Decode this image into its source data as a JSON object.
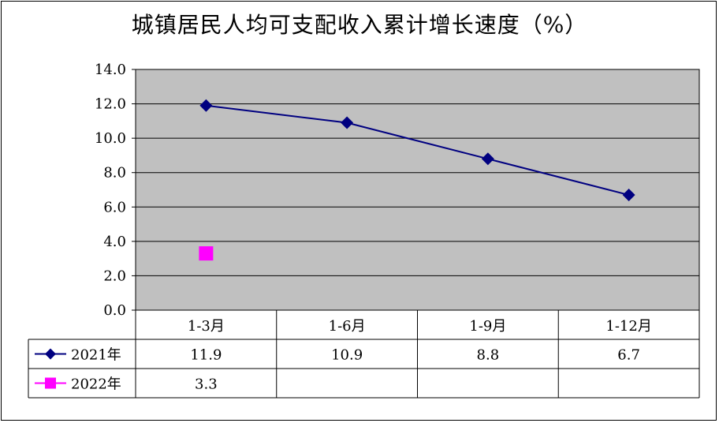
{
  "chart_data": {
    "type": "line",
    "title": "城镇居民人均可支配收入累计增长速度（%）",
    "categories": [
      "1-3月",
      "1-6月",
      "1-9月",
      "1-12月"
    ],
    "ylim": [
      0,
      14
    ],
    "y_ticks": [
      "0.0",
      "2.0",
      "4.0",
      "6.0",
      "8.0",
      "10.0",
      "12.0",
      "14.0"
    ],
    "grid": true,
    "legend": "data-table-left",
    "series": [
      {
        "name": "2021年",
        "values": [
          11.9,
          10.9,
          8.8,
          6.7
        ],
        "labels": [
          "11.9",
          "10.9",
          "8.8",
          "6.7"
        ],
        "color": "#000080",
        "marker": "diamond"
      },
      {
        "name": "2022年",
        "values": [
          3.3,
          null,
          null,
          null
        ],
        "labels": [
          "3.3",
          "",
          "",
          ""
        ],
        "color": "#ff00ff",
        "marker": "square"
      }
    ],
    "plot_background": "#c0c0c0"
  }
}
